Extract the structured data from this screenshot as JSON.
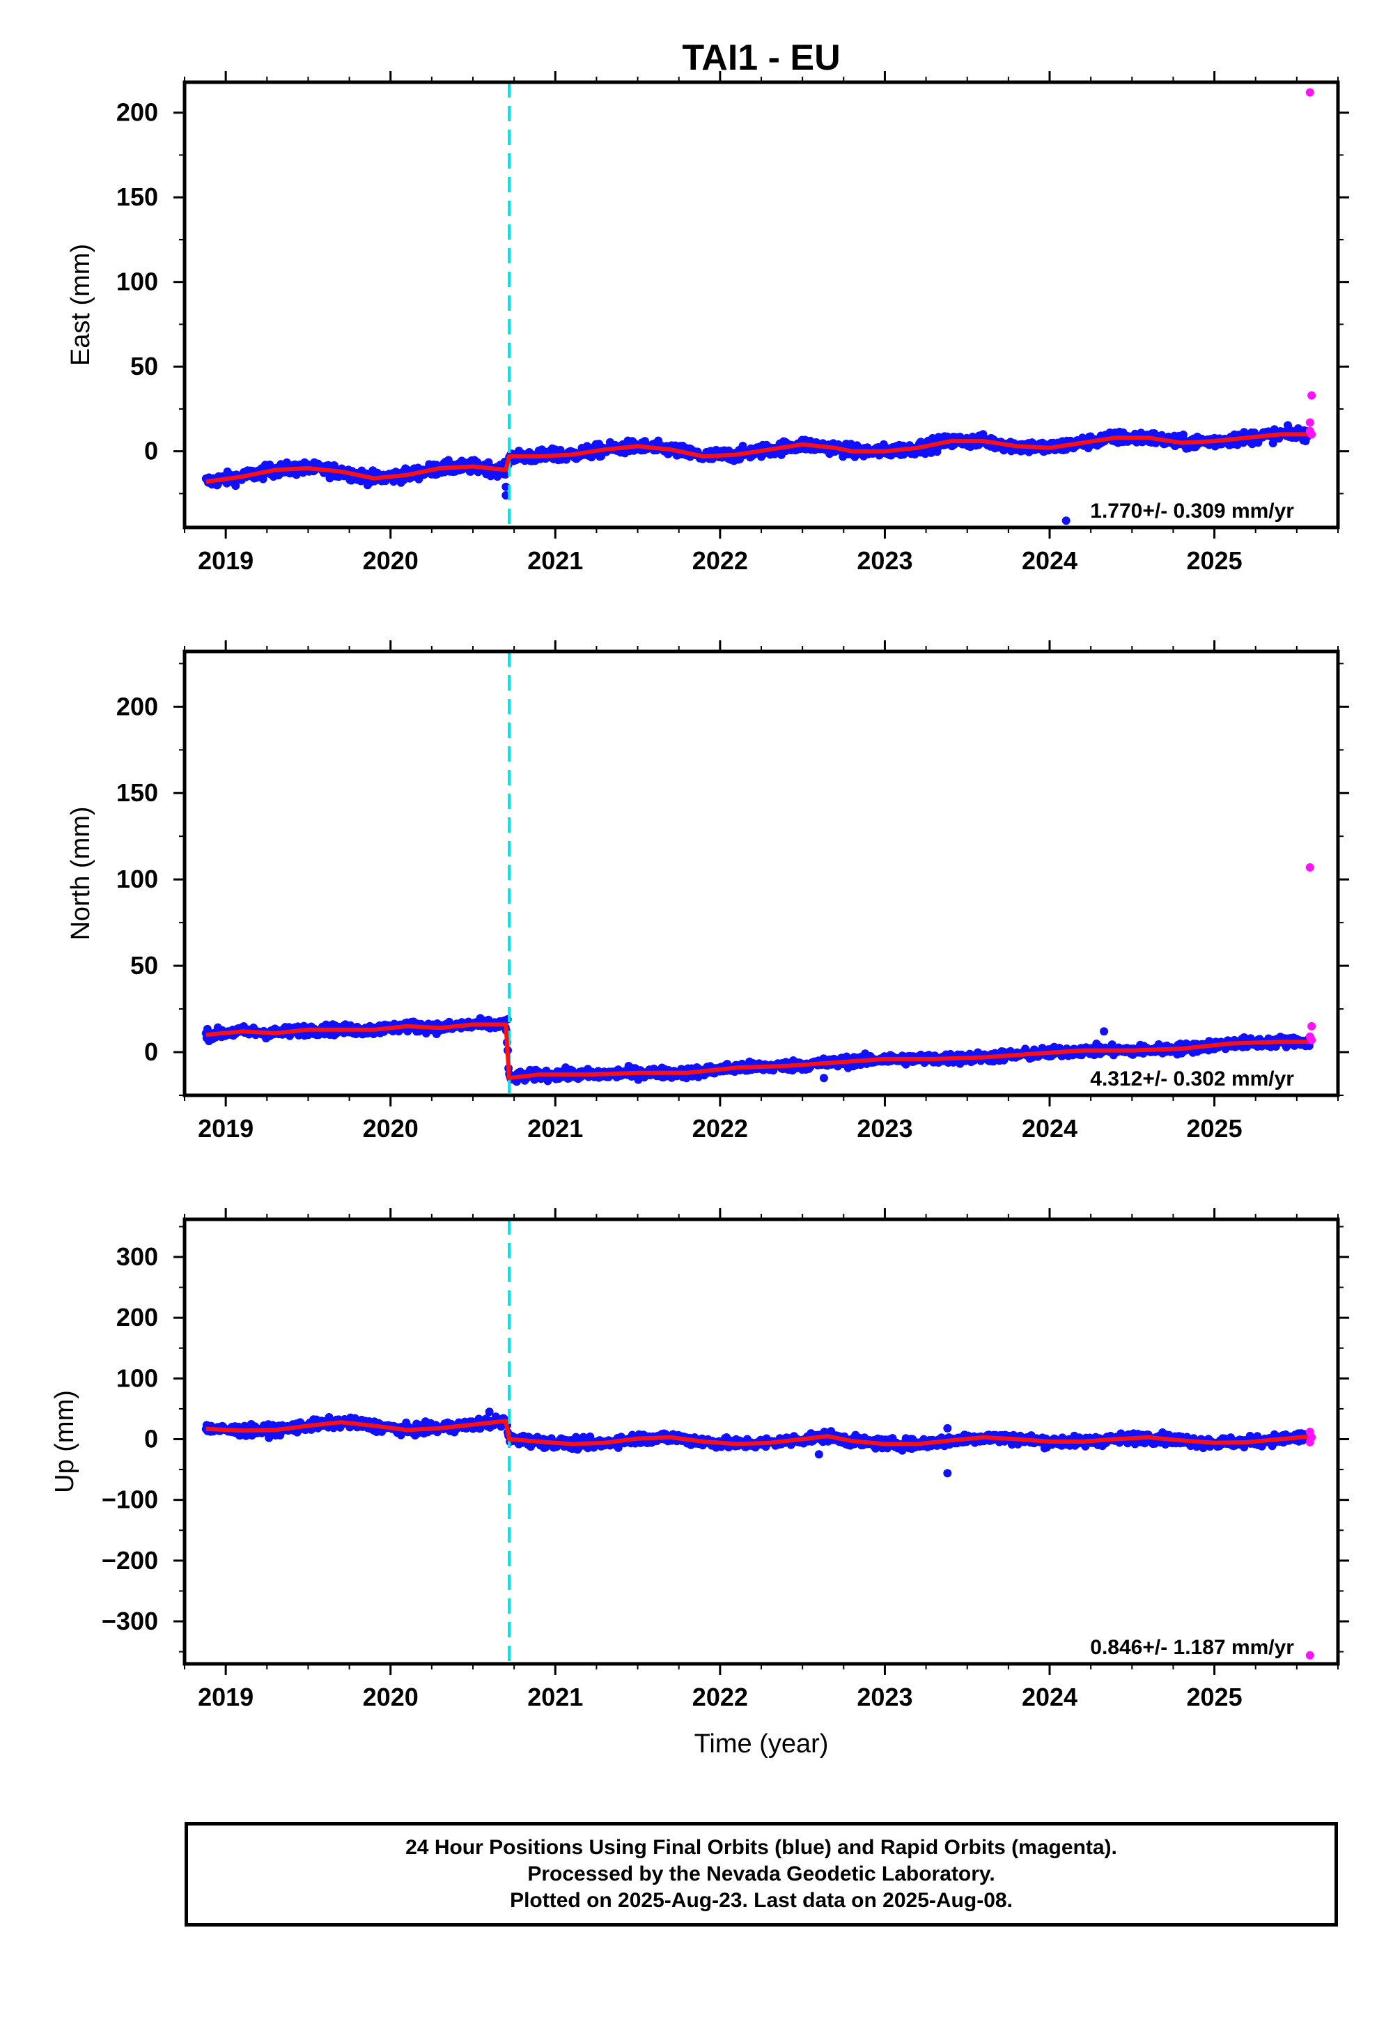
{
  "colors": {
    "final_orbits": "#1010ff",
    "rapid_orbits": "#ff10ff",
    "model_fit": "#ff1010",
    "step_marker": "#00e5ee",
    "frame": "#000000"
  },
  "chart_data": {
    "type": "scatter",
    "title": "TAI1 - EU",
    "xlabel": "Time (year)",
    "xlim": [
      2018.75,
      2025.75
    ],
    "x_ticks": [
      2019,
      2020,
      2021,
      2022,
      2023,
      2024,
      2025
    ],
    "x_tick_labels": [
      "2019",
      "2020",
      "2021",
      "2022",
      "2023",
      "2024",
      "2025"
    ],
    "step_epoch": 2020.72,
    "panels": [
      {
        "name": "east",
        "ylabel": "East (mm)",
        "ylim": [
          -45,
          218
        ],
        "y_ticks": [
          0,
          50,
          100,
          150,
          200
        ],
        "y_tick_labels": [
          "0",
          "50",
          "100",
          "150",
          "200"
        ],
        "rate_label": "1.770+/- 0.309 mm/yr",
        "fit_knots": [
          [
            2018.88,
            -18
          ],
          [
            2019.1,
            -15
          ],
          [
            2019.3,
            -11
          ],
          [
            2019.5,
            -10
          ],
          [
            2019.7,
            -12
          ],
          [
            2019.9,
            -16
          ],
          [
            2020.1,
            -14
          ],
          [
            2020.3,
            -10
          ],
          [
            2020.5,
            -9
          ],
          [
            2020.7,
            -11
          ],
          [
            2020.72,
            -3
          ],
          [
            2020.9,
            -3
          ],
          [
            2021.1,
            -2
          ],
          [
            2021.3,
            1
          ],
          [
            2021.5,
            3
          ],
          [
            2021.7,
            1
          ],
          [
            2021.9,
            -3
          ],
          [
            2022.1,
            -2
          ],
          [
            2022.3,
            1
          ],
          [
            2022.5,
            4
          ],
          [
            2022.7,
            2
          ],
          [
            2022.8,
            0
          ],
          [
            2023.0,
            0
          ],
          [
            2023.2,
            2
          ],
          [
            2023.4,
            6
          ],
          [
            2023.6,
            6
          ],
          [
            2023.8,
            3
          ],
          [
            2024.0,
            2
          ],
          [
            2024.2,
            5
          ],
          [
            2024.4,
            8
          ],
          [
            2024.6,
            8
          ],
          [
            2024.8,
            5
          ],
          [
            2025.0,
            6
          ],
          [
            2025.2,
            8
          ],
          [
            2025.4,
            10
          ],
          [
            2025.6,
            10
          ]
        ],
        "noise": 3.5,
        "final_outliers": [
          [
            2020.7,
            -26
          ],
          [
            2020.7,
            -21
          ],
          [
            2024.1,
            -41
          ],
          [
            2021.0,
            1
          ]
        ],
        "rapid_points": [
          [
            2025.58,
            212
          ],
          [
            2025.59,
            33
          ],
          [
            2025.58,
            17
          ],
          [
            2025.58,
            12
          ],
          [
            2025.59,
            10
          ]
        ]
      },
      {
        "name": "north",
        "ylabel": "North (mm)",
        "ylim": [
          -25,
          232
        ],
        "y_ticks": [
          0,
          50,
          100,
          150,
          200
        ],
        "y_tick_labels": [
          "0",
          "50",
          "100",
          "150",
          "200"
        ],
        "rate_label": "4.312+/- 0.302 mm/yr",
        "fit_knots": [
          [
            2018.88,
            10
          ],
          [
            2019.1,
            12
          ],
          [
            2019.3,
            11
          ],
          [
            2019.5,
            13
          ],
          [
            2019.7,
            13
          ],
          [
            2019.9,
            13
          ],
          [
            2020.1,
            15
          ],
          [
            2020.3,
            14
          ],
          [
            2020.5,
            16
          ],
          [
            2020.7,
            16
          ],
          [
            2020.72,
            -15
          ],
          [
            2020.9,
            -13
          ],
          [
            2021.2,
            -13
          ],
          [
            2021.5,
            -12
          ],
          [
            2021.8,
            -12
          ],
          [
            2022.1,
            -9
          ],
          [
            2022.4,
            -8
          ],
          [
            2022.7,
            -6
          ],
          [
            2023.0,
            -4
          ],
          [
            2023.3,
            -4
          ],
          [
            2023.6,
            -3
          ],
          [
            2023.9,
            -1
          ],
          [
            2024.2,
            1
          ],
          [
            2024.5,
            1
          ],
          [
            2024.8,
            2
          ],
          [
            2025.1,
            5
          ],
          [
            2025.4,
            6
          ],
          [
            2025.6,
            6
          ]
        ],
        "noise": 2.8,
        "final_outliers": [
          [
            2020.71,
            19
          ],
          [
            2024.33,
            12
          ],
          [
            2022.63,
            -15
          ]
        ],
        "rapid_points": [
          [
            2025.58,
            107
          ],
          [
            2025.59,
            15
          ],
          [
            2025.58,
            9
          ],
          [
            2025.59,
            7
          ]
        ]
      },
      {
        "name": "up",
        "ylabel": "Up (mm)",
        "ylim": [
          -370,
          362
        ],
        "y_ticks": [
          -300,
          -200,
          -100,
          0,
          100,
          200,
          300
        ],
        "y_tick_labels": [
          "−300",
          "−200",
          "−100",
          "0",
          "100",
          "200",
          "300"
        ],
        "rate_label": "0.846+/- 1.187 mm/yr",
        "fit_knots": [
          [
            2018.88,
            17
          ],
          [
            2019.1,
            14
          ],
          [
            2019.3,
            15
          ],
          [
            2019.5,
            22
          ],
          [
            2019.7,
            28
          ],
          [
            2019.9,
            22
          ],
          [
            2020.1,
            15
          ],
          [
            2020.3,
            18
          ],
          [
            2020.5,
            24
          ],
          [
            2020.7,
            30
          ],
          [
            2020.72,
            0
          ],
          [
            2020.9,
            -4
          ],
          [
            2021.1,
            -8
          ],
          [
            2021.3,
            -6
          ],
          [
            2021.5,
            1
          ],
          [
            2021.7,
            3
          ],
          [
            2021.9,
            -4
          ],
          [
            2022.1,
            -8
          ],
          [
            2022.3,
            -6
          ],
          [
            2022.5,
            0
          ],
          [
            2022.65,
            5
          ],
          [
            2022.8,
            -3
          ],
          [
            2023.0,
            -8
          ],
          [
            2023.2,
            -8
          ],
          [
            2023.4,
            -2
          ],
          [
            2023.6,
            3
          ],
          [
            2023.8,
            0
          ],
          [
            2024.0,
            -4
          ],
          [
            2024.2,
            -4
          ],
          [
            2024.4,
            0
          ],
          [
            2024.6,
            3
          ],
          [
            2024.8,
            -2
          ],
          [
            2025.0,
            -6
          ],
          [
            2025.2,
            -5
          ],
          [
            2025.4,
            0
          ],
          [
            2025.6,
            5
          ]
        ],
        "noise": 8,
        "final_outliers": [
          [
            2023.38,
            -56
          ],
          [
            2020.6,
            45
          ],
          [
            2022.6,
            -25
          ],
          [
            2023.38,
            18
          ]
        ],
        "rapid_points": [
          [
            2025.58,
            -356
          ],
          [
            2025.58,
            12
          ],
          [
            2025.59,
            3
          ],
          [
            2025.58,
            -5
          ]
        ]
      }
    ]
  },
  "footer": {
    "line1": "24 Hour Positions Using Final Orbits (blue) and Rapid Orbits (magenta).",
    "line2": "Processed by the Nevada Geodetic Laboratory.",
    "line3": "Plotted on 2025-Aug-23. Last data on 2025-Aug-08."
  }
}
